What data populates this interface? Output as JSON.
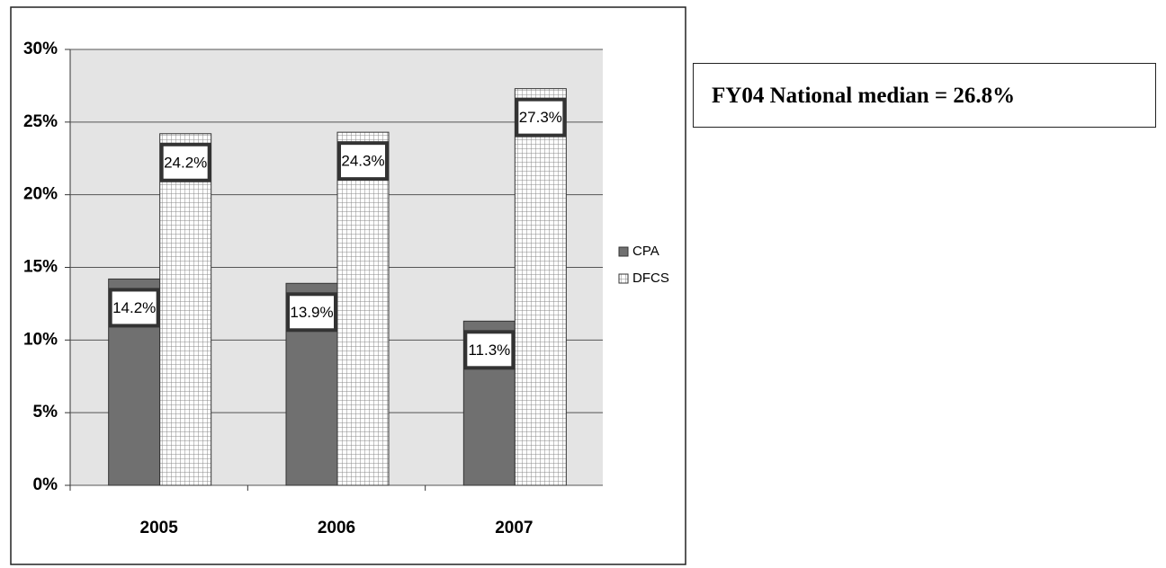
{
  "chart_data": {
    "type": "bar",
    "categories": [
      "2005",
      "2006",
      "2007"
    ],
    "series": [
      {
        "name": "CPA",
        "color": "#707070",
        "values": [
          14.2,
          13.9,
          11.3
        ],
        "value_labels": [
          "14.2%",
          "13.9%",
          "11.3%"
        ]
      },
      {
        "name": "DFCS",
        "color": "#ffffff",
        "values": [
          24.2,
          24.3,
          27.3
        ],
        "value_labels": [
          "24.2%",
          "24.3%",
          "27.3%"
        ]
      }
    ],
    "ylim": [
      0,
      30
    ],
    "yticks": [
      {
        "value": 0,
        "label": "0%"
      },
      {
        "value": 5,
        "label": "5%"
      },
      {
        "value": 10,
        "label": "10%"
      },
      {
        "value": 15,
        "label": "15%"
      },
      {
        "value": 20,
        "label": "20%"
      },
      {
        "value": 25,
        "label": "25%"
      },
      {
        "value": 30,
        "label": "30%"
      }
    ],
    "grid": true,
    "legend": "right",
    "annotation": "FY04 National median = 26.8%"
  }
}
